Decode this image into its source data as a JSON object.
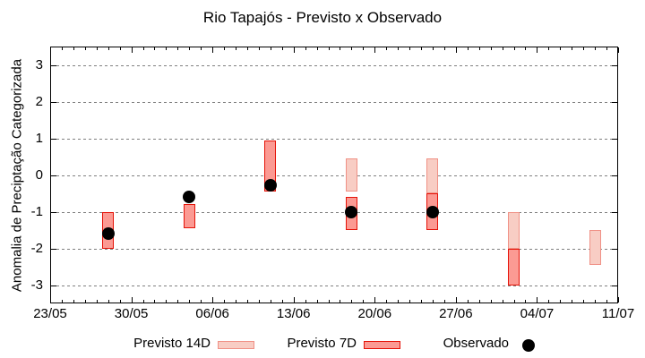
{
  "title": "Rio Tapajós - Previsto x Observado",
  "chart_data": {
    "type": "bar",
    "subtype": "range-bars-with-observed-dots",
    "title": "Rio Tapajós - Previsto x Observado",
    "xlabel": "",
    "ylabel": "Anomalia de Preciptação Categorizada",
    "ylim": [
      -3.5,
      3.5
    ],
    "yticks": [
      3,
      2,
      1,
      0,
      -1,
      -2,
      -3
    ],
    "grid": "horizontal-dashed",
    "grid_color": "#808080",
    "x_axis_days_range": [
      0,
      49
    ],
    "xticks": [
      {
        "day": 0,
        "label": "23/05"
      },
      {
        "day": 7,
        "label": "30/05"
      },
      {
        "day": 14,
        "label": "06/06"
      },
      {
        "day": 21,
        "label": "13/06"
      },
      {
        "day": 28,
        "label": "20/06"
      },
      {
        "day": 35,
        "label": "27/06"
      },
      {
        "day": 42,
        "label": "04/07"
      },
      {
        "day": 49,
        "label": "11/07"
      }
    ],
    "minor_xtick_every_days": 1,
    "legend_position": "bottom",
    "series": [
      {
        "name": "Previsto 14D",
        "type": "range",
        "fill": "#f8cdc4",
        "border": "#f09186",
        "points": [
          {
            "date": "18/06",
            "day": 26,
            "low": -0.45,
            "high": 0.45
          },
          {
            "date": "25/06",
            "day": 33,
            "low": -0.5,
            "high": 0.45
          },
          {
            "date": "02/07",
            "day": 40,
            "low": -2.0,
            "high": -1.0
          },
          {
            "date": "09/07",
            "day": 47,
            "low": -2.45,
            "high": -1.5
          }
        ]
      },
      {
        "name": "Previsto 7D",
        "type": "range",
        "fill": "#fb9a93",
        "border": "#e51308",
        "points": [
          {
            "date": "28/05",
            "day": 5,
            "low": -2.0,
            "high": -1.0
          },
          {
            "date": "04/06",
            "day": 12,
            "low": -1.45,
            "high": -0.8
          },
          {
            "date": "11/06",
            "day": 19,
            "low": -0.45,
            "high": 0.95
          },
          {
            "date": "18/06",
            "day": 26,
            "low": -1.5,
            "high": -0.6
          },
          {
            "date": "25/06",
            "day": 33,
            "low": -1.5,
            "high": -0.5
          },
          {
            "date": "02/07",
            "day": 40,
            "low": -3.0,
            "high": -2.0
          }
        ]
      },
      {
        "name": "Observado",
        "type": "dot",
        "color": "#000000",
        "points": [
          {
            "date": "28/05",
            "day": 5,
            "value": -1.6
          },
          {
            "date": "04/06",
            "day": 12,
            "value": -0.6
          },
          {
            "date": "11/06",
            "day": 19,
            "value": -0.28
          },
          {
            "date": "18/06",
            "day": 26,
            "value": -1.0
          },
          {
            "date": "25/06",
            "day": 33,
            "value": -1.0
          }
        ]
      }
    ]
  },
  "legend": {
    "items": [
      "Previsto 14D",
      "Previsto 7D",
      "Observado"
    ]
  }
}
